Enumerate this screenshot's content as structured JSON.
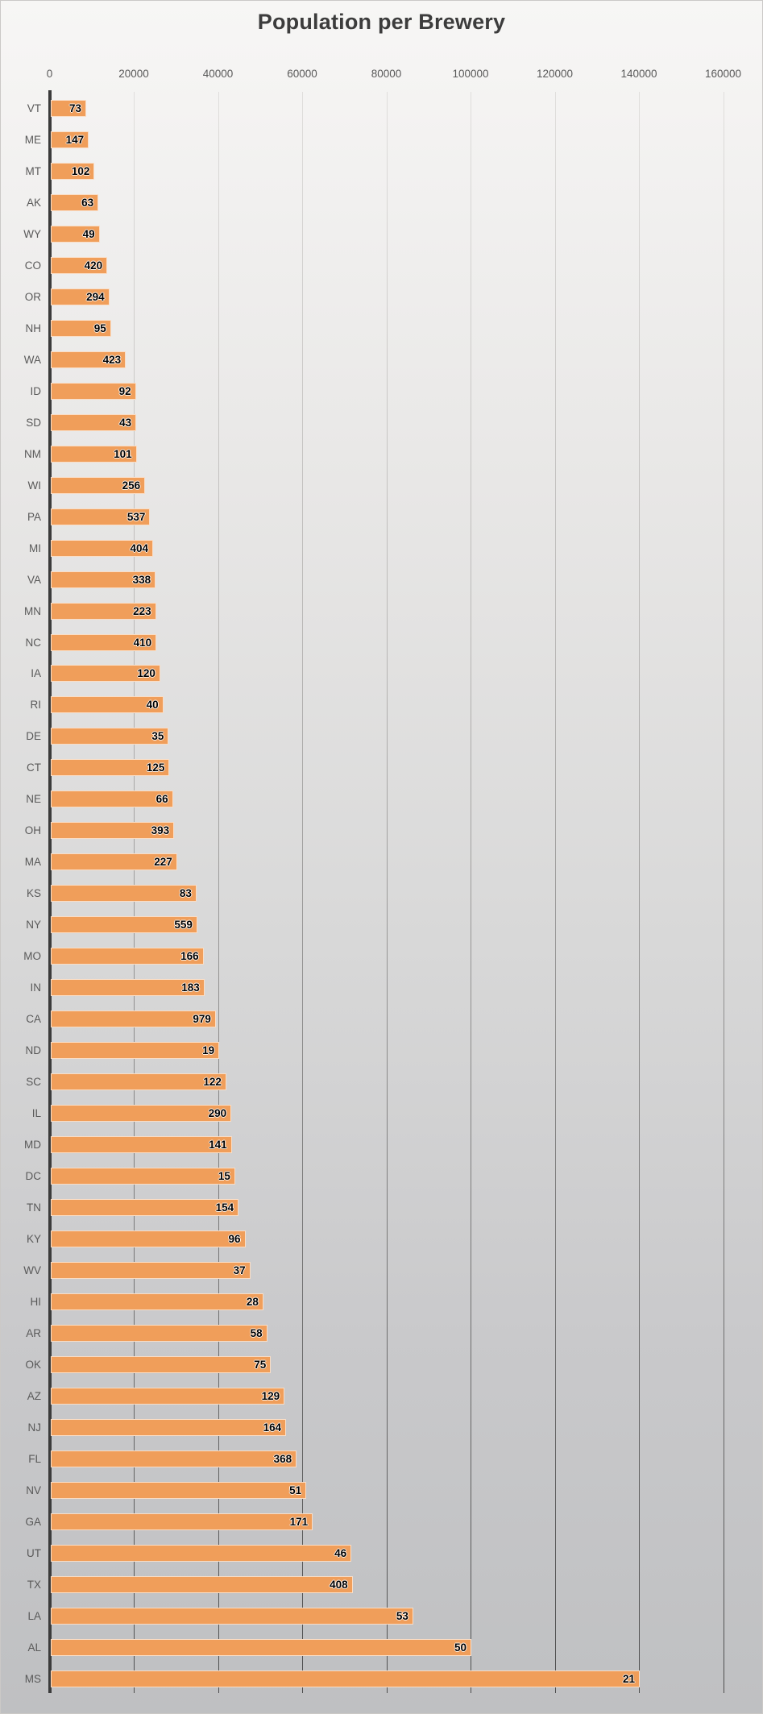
{
  "title": "Population per Brewery",
  "chart_data": {
    "type": "bar",
    "orientation": "horizontal",
    "title": "Population per Brewery",
    "xlabel": "",
    "ylabel": "",
    "xlim": [
      0,
      160000
    ],
    "x_ticks": [
      0,
      20000,
      40000,
      60000,
      80000,
      100000,
      120000,
      140000,
      160000
    ],
    "grid": "vertical-major",
    "legend": "none",
    "bar_color": "#F09E5A",
    "axis_text_color": "#595959",
    "categories": [
      "VT",
      "ME",
      "MT",
      "AK",
      "WY",
      "CO",
      "OR",
      "NH",
      "WA",
      "ID",
      "SD",
      "NM",
      "WI",
      "PA",
      "MI",
      "VA",
      "MN",
      "NC",
      "IA",
      "RI",
      "DE",
      "CT",
      "NE",
      "OH",
      "MA",
      "KS",
      "NY",
      "MO",
      "IN",
      "CA",
      "ND",
      "SC",
      "IL",
      "MD",
      "DC",
      "TN",
      "KY",
      "WV",
      "HI",
      "AR",
      "OK",
      "AZ",
      "NJ",
      "FL",
      "NV",
      "GA",
      "UT",
      "TX",
      "LA",
      "AL",
      "MS"
    ],
    "values": [
      8700,
      9300,
      10700,
      11600,
      11900,
      13700,
      14200,
      14600,
      18100,
      20500,
      20600,
      20700,
      22700,
      23900,
      24600,
      25200,
      25300,
      25400,
      26300,
      27000,
      28300,
      28500,
      29300,
      29600,
      30300,
      34900,
      35100,
      36600,
      36800,
      39500,
      40300,
      42000,
      43200,
      43300,
      44100,
      44900,
      46500,
      47700,
      50800,
      51700,
      52600,
      55800,
      56200,
      58700,
      61000,
      62500,
      71700,
      72000,
      86400,
      100200,
      140200
    ],
    "data_labels": [
      73,
      147,
      102,
      63,
      49,
      420,
      294,
      95,
      423,
      92,
      43,
      101,
      256,
      537,
      404,
      338,
      223,
      410,
      120,
      40,
      35,
      125,
      66,
      393,
      227,
      83,
      559,
      166,
      183,
      979,
      19,
      122,
      290,
      141,
      15,
      154,
      96,
      37,
      28,
      58,
      75,
      129,
      164,
      368,
      51,
      171,
      46,
      408,
      53,
      50,
      21
    ]
  }
}
